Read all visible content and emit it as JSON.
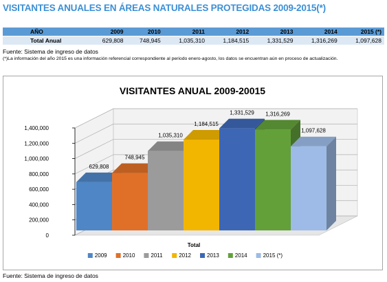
{
  "page": {
    "title": "VISITANTES ANUALES EN ÁREAS NATURALES PROTEGIDAS 2009-2015(*)",
    "source_note": "Fuente: Sistema de ingreso de datos",
    "footnote": "(*)La información del año 2015 es una información referencial correspondiente al periodo enero-agosto, los datos se encuentran aún en proceso de actualización.",
    "bottom_source": "Fuente: Sistema de ingreso de datos"
  },
  "table": {
    "headers": [
      "AÑO",
      "2009",
      "2010",
      "2011",
      "2012",
      "2013",
      "2014",
      "2015 (*)"
    ],
    "row": [
      "Total Anual",
      "629,808",
      "748,945",
      "1,035,310",
      "1,184,515",
      "1,331,529",
      "1,316,269",
      "1,097,628"
    ]
  },
  "chart_data": {
    "type": "bar",
    "title": "VISITANTES ANUAL 2009-20015",
    "categories": [
      "Total"
    ],
    "xlabel": "Total",
    "ylim": [
      0,
      1400000
    ],
    "yticks": [
      "0",
      "200,000",
      "400,000",
      "600,000",
      "800,000",
      "1,000,000",
      "1,200,000",
      "1,400,000"
    ],
    "grid": true,
    "legend_position": "bottom",
    "series": [
      {
        "name": "2009",
        "value": 629808,
        "label": "629,808",
        "color": "#4f86c6"
      },
      {
        "name": "2010",
        "value": 748945,
        "label": "748,945",
        "color": "#e07028"
      },
      {
        "name": "2011",
        "value": 1035310,
        "label": "1,035,310",
        "color": "#9b9b9b"
      },
      {
        "name": "2012",
        "value": 1184515,
        "label": "1,184,515",
        "color": "#f2b600"
      },
      {
        "name": "2013",
        "value": 1331529,
        "label": "1,331,529",
        "color": "#3d67b5"
      },
      {
        "name": "2014",
        "value": 1316269,
        "label": "1,316,269",
        "color": "#63a03a"
      },
      {
        "name": "2015 (*)",
        "value": 1097628,
        "label": "1,097,628",
        "color": "#9dbbe6"
      }
    ]
  }
}
